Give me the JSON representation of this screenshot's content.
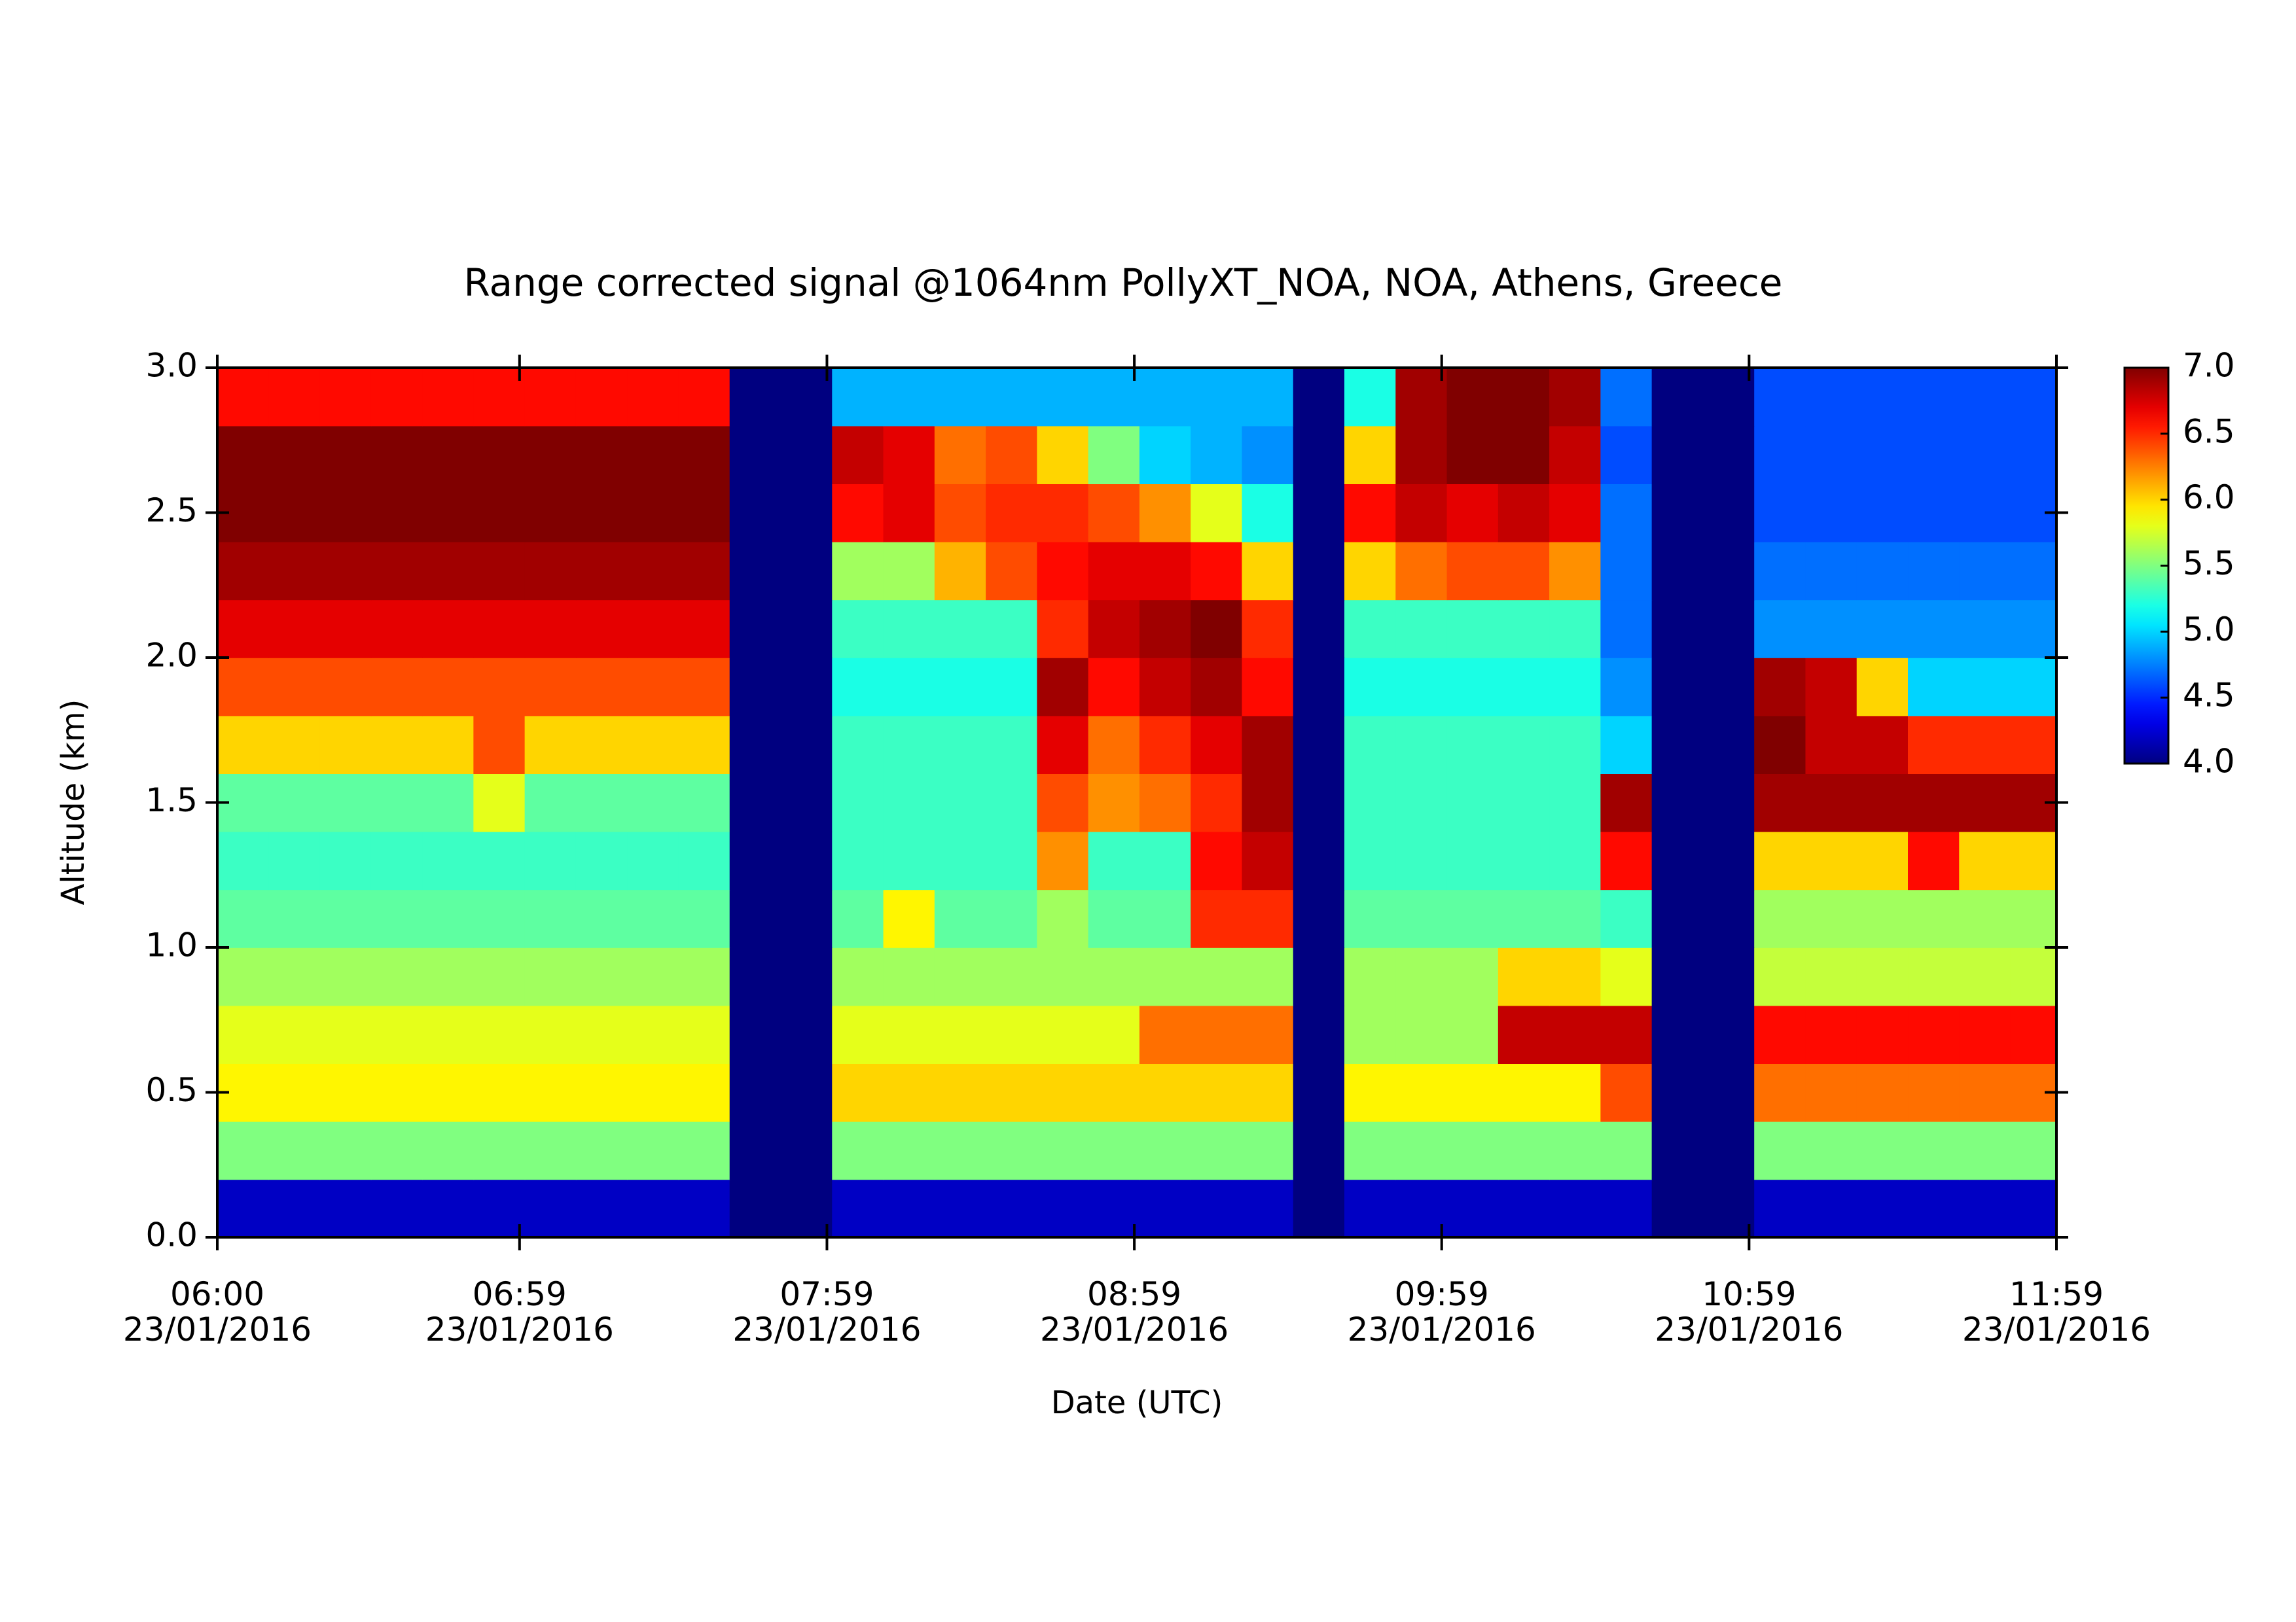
{
  "chart_data": {
    "type": "heatmap",
    "title": "Range corrected signal @1064nm  PollyXT_NOA, NOA, Athens, Greece",
    "x_label": "Date (UTC)",
    "y_label": "Altitude (km)",
    "colormap": "jet",
    "x": [
      "06:00",
      "06:10",
      "06:20",
      "06:30",
      "06:40",
      "06:50",
      "07:00",
      "07:10",
      "07:20",
      "07:30",
      "07:40",
      "07:50",
      "08:00",
      "08:10",
      "08:20",
      "08:30",
      "08:40",
      "08:50",
      "09:00",
      "09:10",
      "09:20",
      "09:30",
      "09:40",
      "09:50",
      "10:00",
      "10:10",
      "10:20",
      "10:30",
      "10:40",
      "10:50",
      "11:00",
      "11:10",
      "11:20",
      "11:30",
      "11:40",
      "11:50"
    ],
    "y": [
      0.1,
      0.3,
      0.5,
      0.7,
      0.9,
      1.1,
      1.3,
      1.5,
      1.7,
      1.9,
      2.1,
      2.3,
      2.5,
      2.7,
      2.9
    ],
    "values": [
      [
        4.2,
        4.2,
        4.2,
        4.2,
        4.2,
        4.2,
        4.2,
        4.2,
        4.2,
        4.2,
        4.0,
        4.0,
        4.2,
        4.2,
        4.2,
        4.2,
        4.2,
        4.2,
        4.2,
        4.2,
        4.2,
        4.0,
        4.2,
        4.2,
        4.2,
        4.2,
        4.2,
        4.2,
        4.0,
        4.0,
        4.2,
        4.2,
        4.2,
        4.2,
        4.2,
        4.2
      ],
      [
        5.5,
        5.5,
        5.5,
        5.5,
        5.5,
        5.5,
        5.5,
        5.5,
        5.5,
        5.5,
        4.0,
        4.0,
        5.5,
        5.5,
        5.5,
        5.5,
        5.5,
        5.5,
        5.5,
        5.5,
        5.5,
        4.0,
        5.5,
        5.5,
        5.5,
        5.5,
        5.5,
        5.5,
        4.0,
        4.0,
        5.5,
        5.5,
        5.5,
        5.5,
        5.5,
        5.5
      ],
      [
        5.9,
        5.9,
        5.9,
        5.9,
        5.9,
        5.9,
        5.9,
        5.9,
        5.9,
        5.9,
        4.0,
        4.0,
        6.0,
        6.0,
        6.0,
        6.0,
        6.0,
        6.0,
        6.0,
        6.0,
        6.0,
        4.0,
        5.9,
        5.9,
        5.9,
        5.9,
        5.9,
        6.4,
        4.0,
        4.0,
        6.3,
        6.3,
        6.3,
        6.3,
        6.3,
        6.3
      ],
      [
        5.8,
        5.8,
        5.8,
        5.8,
        5.8,
        5.8,
        5.8,
        5.8,
        5.8,
        5.8,
        4.0,
        4.0,
        5.8,
        5.8,
        5.8,
        5.8,
        5.8,
        5.8,
        6.3,
        6.3,
        6.3,
        4.0,
        5.6,
        5.6,
        5.6,
        6.8,
        6.8,
        6.8,
        4.0,
        4.0,
        6.6,
        6.6,
        6.6,
        6.6,
        6.6,
        6.6
      ],
      [
        5.6,
        5.6,
        5.6,
        5.6,
        5.6,
        5.6,
        5.6,
        5.6,
        5.6,
        5.6,
        4.0,
        4.0,
        5.6,
        5.6,
        5.6,
        5.6,
        5.6,
        5.6,
        5.6,
        5.6,
        5.6,
        4.0,
        5.6,
        5.6,
        5.6,
        6.0,
        6.0,
        5.8,
        4.0,
        4.0,
        5.7,
        5.7,
        5.7,
        5.7,
        5.7,
        5.7
      ],
      [
        5.4,
        5.4,
        5.4,
        5.4,
        5.4,
        5.4,
        5.4,
        5.4,
        5.4,
        5.4,
        4.0,
        4.0,
        5.4,
        5.9,
        5.4,
        5.4,
        5.6,
        5.4,
        5.4,
        6.5,
        6.5,
        4.0,
        5.4,
        5.4,
        5.4,
        5.4,
        5.4,
        5.3,
        4.0,
        4.0,
        5.6,
        5.6,
        5.6,
        5.6,
        5.6,
        5.6
      ],
      [
        5.3,
        5.3,
        5.3,
        5.3,
        5.3,
        5.3,
        5.3,
        5.3,
        5.3,
        5.3,
        4.0,
        4.0,
        5.3,
        5.3,
        5.3,
        5.3,
        6.2,
        5.3,
        5.3,
        6.6,
        6.8,
        4.0,
        5.3,
        5.3,
        5.3,
        5.3,
        5.3,
        6.6,
        4.0,
        4.0,
        6.0,
        6.0,
        6.0,
        6.6,
        6.0,
        6.0
      ],
      [
        5.4,
        5.4,
        5.4,
        5.4,
        5.4,
        5.8,
        5.4,
        5.4,
        5.4,
        5.4,
        4.0,
        4.0,
        5.3,
        5.3,
        5.3,
        5.3,
        6.4,
        6.2,
        6.3,
        6.5,
        6.9,
        4.0,
        5.3,
        5.3,
        5.3,
        5.3,
        5.3,
        6.9,
        4.0,
        4.0,
        6.9,
        6.9,
        6.9,
        6.9,
        6.9,
        6.9
      ],
      [
        6.0,
        6.0,
        6.0,
        6.0,
        6.0,
        6.4,
        6.0,
        6.0,
        6.0,
        6.0,
        4.0,
        4.0,
        5.3,
        5.3,
        5.3,
        5.3,
        6.7,
        6.3,
        6.5,
        6.7,
        6.9,
        4.0,
        5.3,
        5.3,
        5.3,
        5.3,
        5.3,
        5.0,
        4.0,
        4.0,
        7.0,
        6.8,
        6.8,
        6.5,
        6.5,
        6.5
      ],
      [
        6.4,
        6.4,
        6.4,
        6.4,
        6.4,
        6.4,
        6.4,
        6.4,
        6.4,
        6.4,
        4.0,
        4.0,
        5.2,
        5.2,
        5.2,
        5.2,
        6.9,
        6.6,
        6.8,
        6.9,
        6.6,
        4.0,
        5.2,
        5.2,
        5.2,
        5.2,
        5.2,
        4.8,
        4.0,
        4.0,
        6.9,
        6.8,
        6.0,
        5.0,
        5.0,
        5.0
      ],
      [
        6.7,
        6.7,
        6.7,
        6.7,
        6.7,
        6.7,
        6.7,
        6.7,
        6.7,
        6.7,
        4.0,
        4.0,
        5.3,
        5.3,
        5.3,
        5.3,
        6.5,
        6.8,
        6.9,
        7.0,
        6.5,
        4.0,
        5.3,
        5.3,
        5.3,
        5.3,
        5.3,
        4.7,
        4.0,
        4.0,
        4.8,
        4.8,
        4.8,
        4.8,
        4.8,
        4.8
      ],
      [
        6.9,
        6.9,
        6.9,
        6.9,
        6.9,
        6.9,
        6.9,
        6.9,
        6.9,
        6.9,
        4.0,
        4.0,
        5.6,
        5.6,
        6.1,
        6.4,
        6.6,
        6.7,
        6.7,
        6.6,
        6.0,
        4.0,
        6.0,
        6.3,
        6.4,
        6.4,
        6.2,
        4.7,
        4.0,
        4.0,
        4.7,
        4.7,
        4.7,
        4.7,
        4.7,
        4.7
      ],
      [
        7.0,
        7.0,
        7.0,
        7.0,
        7.0,
        7.0,
        7.0,
        7.0,
        7.0,
        7.0,
        4.0,
        4.0,
        6.6,
        6.7,
        6.4,
        6.5,
        6.5,
        6.4,
        6.2,
        5.8,
        5.2,
        4.0,
        6.6,
        6.8,
        6.7,
        6.8,
        6.7,
        4.7,
        4.0,
        4.0,
        4.6,
        4.6,
        4.6,
        4.6,
        4.6,
        4.6
      ],
      [
        7.0,
        7.0,
        7.0,
        7.0,
        7.0,
        7.0,
        7.0,
        7.0,
        7.0,
        7.0,
        4.0,
        4.0,
        6.8,
        6.7,
        6.3,
        6.4,
        6.0,
        5.5,
        5.0,
        4.9,
        4.8,
        4.0,
        6.0,
        6.9,
        7.0,
        7.0,
        6.8,
        4.6,
        4.0,
        4.0,
        4.6,
        4.6,
        4.6,
        4.6,
        4.6,
        4.6
      ],
      [
        6.6,
        6.6,
        6.6,
        6.6,
        6.6,
        6.6,
        6.6,
        6.6,
        6.6,
        6.6,
        4.0,
        4.0,
        4.9,
        4.9,
        4.9,
        4.9,
        4.9,
        4.9,
        4.9,
        4.9,
        4.9,
        4.0,
        5.2,
        6.9,
        7.0,
        7.0,
        6.9,
        4.7,
        4.0,
        4.0,
        4.6,
        4.6,
        4.6,
        4.6,
        4.6,
        4.6
      ]
    ],
    "xlim": [
      "06:00",
      "11:59"
    ],
    "xticks": [
      {
        "value": "06:00",
        "label": "06:00\n23/01/2016"
      },
      {
        "value": "06:59",
        "label": "06:59\n23/01/2016"
      },
      {
        "value": "07:59",
        "label": "07:59\n23/01/2016"
      },
      {
        "value": "08:59",
        "label": "08:59\n23/01/2016"
      },
      {
        "value": "09:59",
        "label": "09:59\n23/01/2016"
      },
      {
        "value": "10:59",
        "label": "10:59\n23/01/2016"
      },
      {
        "value": "11:59",
        "label": "11:59\n23/01/2016"
      }
    ],
    "ylim": [
      0,
      3
    ],
    "yticks": [
      {
        "value": 0,
        "label": "0.0"
      },
      {
        "value": 0.5,
        "label": "0.5"
      },
      {
        "value": 1,
        "label": "1.0"
      },
      {
        "value": 1.5,
        "label": "1.5"
      },
      {
        "value": 2,
        "label": "2.0"
      },
      {
        "value": 2.5,
        "label": "2.5"
      },
      {
        "value": 3,
        "label": "3.0"
      }
    ],
    "clim": [
      4,
      7
    ],
    "cticks": [
      {
        "value": 4,
        "label": "4.0"
      },
      {
        "value": 4.5,
        "label": "4.5"
      },
      {
        "value": 5,
        "label": "5.0"
      },
      {
        "value": 5.5,
        "label": "5.5"
      },
      {
        "value": 6,
        "label": "6.0"
      },
      {
        "value": 6.5,
        "label": "6.5"
      },
      {
        "value": 7,
        "label": "7.0"
      }
    ]
  }
}
